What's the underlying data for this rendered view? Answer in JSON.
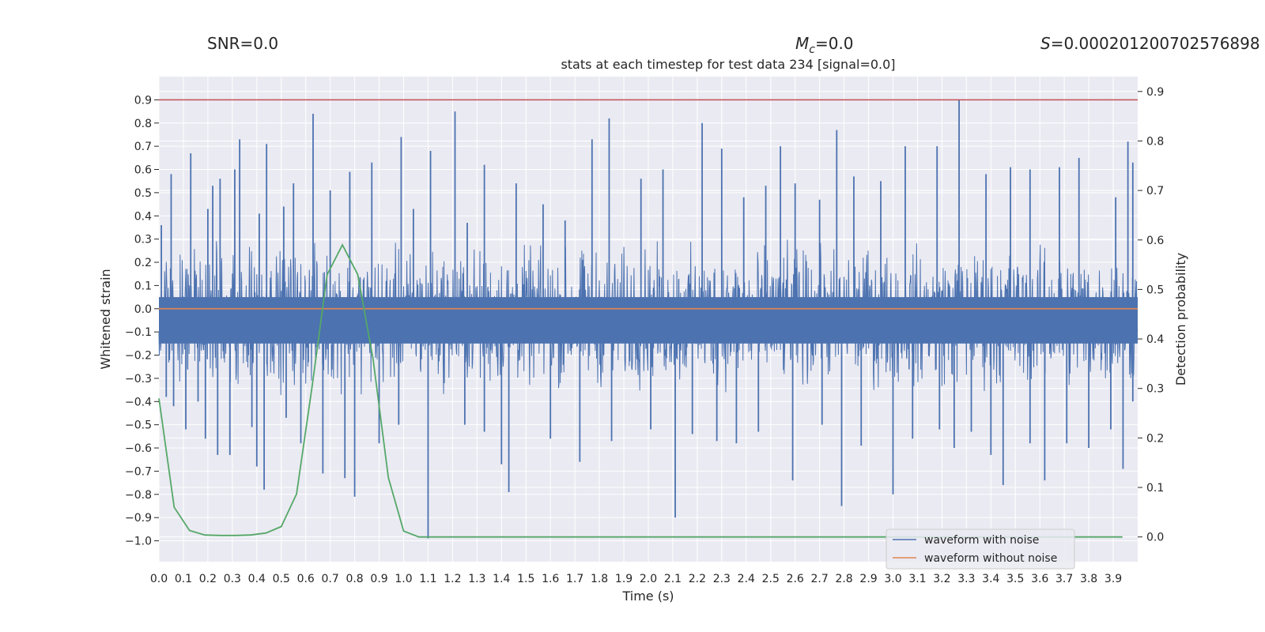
{
  "header": {
    "snr": "SNR=0.0",
    "mc_symbol": "M",
    "mc_sub": "c",
    "mc_value": "=0.0",
    "s_symbol": "S",
    "s_value": "=0.000201200702576898"
  },
  "chart_data": {
    "type": "line",
    "title": "stats at each timestep for test data 234 [signal=0.0]",
    "xlabel": "Time (s)",
    "ylabel": "Whitened strain",
    "y2label": "Detection probability",
    "xlim": [
      0.0,
      4.0
    ],
    "ylim": [
      -1.09,
      1.0
    ],
    "y2lim": [
      -0.05,
      0.93
    ],
    "grid": true,
    "legend_position": "lower-right",
    "xticks": [
      "0.0",
      "0.1",
      "0.2",
      "0.3",
      "0.4",
      "0.5",
      "0.6",
      "0.7",
      "0.8",
      "0.9",
      "1.0",
      "1.1",
      "1.2",
      "1.3",
      "1.4",
      "1.5",
      "1.6",
      "1.7",
      "1.8",
      "1.9",
      "2.0",
      "2.1",
      "2.2",
      "2.3",
      "2.4",
      "2.5",
      "2.6",
      "2.7",
      "2.8",
      "2.9",
      "3.0",
      "3.1",
      "3.2",
      "3.3",
      "3.4",
      "3.5",
      "3.6",
      "3.7",
      "3.8",
      "3.9"
    ],
    "yticks": [
      "0.9",
      "0.8",
      "0.7",
      "0.6",
      "0.5",
      "0.4",
      "0.3",
      "0.2",
      "0.1",
      "0.0",
      "−0.1",
      "−0.2",
      "−0.3",
      "−0.4",
      "−0.5",
      "−0.6",
      "−0.7",
      "−0.8",
      "−0.9",
      "−1.0"
    ],
    "y2ticks": [
      "0.9",
      "0.8",
      "0.7",
      "0.6",
      "0.5",
      "0.4",
      "0.3",
      "0.2",
      "0.1",
      "0.0"
    ],
    "threshold_line": {
      "y": 0.9,
      "color": "#c44e52"
    },
    "series": [
      {
        "name": "waveform with noise",
        "color": "#4c72b0",
        "axis": "left",
        "kind": "noise",
        "band": [
          -0.15,
          0.05
        ],
        "spikes": [
          [
            0.01,
            0.36
          ],
          [
            0.05,
            0.58
          ],
          [
            0.13,
            0.67
          ],
          [
            0.2,
            0.43
          ],
          [
            0.22,
            0.53
          ],
          [
            0.25,
            0.56
          ],
          [
            0.31,
            0.6
          ],
          [
            0.33,
            0.73
          ],
          [
            0.41,
            0.41
          ],
          [
            0.44,
            0.71
          ],
          [
            0.51,
            0.44
          ],
          [
            0.55,
            0.54
          ],
          [
            0.63,
            0.84
          ],
          [
            0.7,
            0.51
          ],
          [
            0.78,
            0.59
          ],
          [
            0.87,
            0.63
          ],
          [
            0.99,
            0.74
          ],
          [
            1.04,
            0.43
          ],
          [
            1.11,
            0.68
          ],
          [
            1.21,
            0.85
          ],
          [
            1.26,
            0.37
          ],
          [
            1.33,
            0.62
          ],
          [
            1.46,
            0.54
          ],
          [
            1.57,
            0.45
          ],
          [
            1.66,
            0.38
          ],
          [
            1.77,
            0.73
          ],
          [
            1.84,
            0.82
          ],
          [
            1.97,
            0.56
          ],
          [
            2.06,
            0.6
          ],
          [
            2.22,
            0.8
          ],
          [
            2.3,
            0.69
          ],
          [
            2.39,
            0.48
          ],
          [
            2.48,
            0.53
          ],
          [
            2.54,
            0.7
          ],
          [
            2.6,
            0.54
          ],
          [
            2.7,
            0.47
          ],
          [
            2.77,
            0.77
          ],
          [
            2.84,
            0.57
          ],
          [
            2.95,
            0.55
          ],
          [
            3.05,
            0.7
          ],
          [
            3.18,
            0.7
          ],
          [
            3.27,
            0.9
          ],
          [
            3.38,
            0.58
          ],
          [
            3.48,
            0.61
          ],
          [
            3.56,
            0.6
          ],
          [
            3.68,
            0.61
          ],
          [
            3.76,
            0.65
          ],
          [
            3.91,
            0.48
          ],
          [
            3.96,
            0.72
          ],
          [
            3.98,
            0.63
          ],
          [
            0.03,
            -0.38
          ],
          [
            0.06,
            -0.42
          ],
          [
            0.11,
            -0.52
          ],
          [
            0.16,
            -0.4
          ],
          [
            0.19,
            -0.56
          ],
          [
            0.24,
            -0.63
          ],
          [
            0.29,
            -0.63
          ],
          [
            0.38,
            -0.51
          ],
          [
            0.4,
            -0.68
          ],
          [
            0.43,
            -0.78
          ],
          [
            0.52,
            -0.47
          ],
          [
            0.58,
            -0.58
          ],
          [
            0.67,
            -0.71
          ],
          [
            0.76,
            -0.73
          ],
          [
            0.8,
            -0.81
          ],
          [
            0.9,
            -0.58
          ],
          [
            0.98,
            -0.5
          ],
          [
            1.1,
            -0.99
          ],
          [
            1.25,
            -0.5
          ],
          [
            1.33,
            -0.53
          ],
          [
            1.4,
            -0.67
          ],
          [
            1.43,
            -0.79
          ],
          [
            1.6,
            -0.56
          ],
          [
            1.72,
            -0.66
          ],
          [
            1.85,
            -0.57
          ],
          [
            2.01,
            -0.52
          ],
          [
            2.11,
            -0.9
          ],
          [
            2.18,
            -0.54
          ],
          [
            2.28,
            -0.57
          ],
          [
            2.36,
            -0.58
          ],
          [
            2.45,
            -0.53
          ],
          [
            2.59,
            -0.74
          ],
          [
            2.71,
            -0.5
          ],
          [
            2.79,
            -0.85
          ],
          [
            2.87,
            -0.59
          ],
          [
            3.0,
            -0.8
          ],
          [
            3.08,
            -0.56
          ],
          [
            3.19,
            -0.52
          ],
          [
            3.25,
            -0.6
          ],
          [
            3.32,
            -0.53
          ],
          [
            3.4,
            -0.63
          ],
          [
            3.45,
            -0.76
          ],
          [
            3.56,
            -0.58
          ],
          [
            3.62,
            -0.74
          ],
          [
            3.71,
            -0.58
          ],
          [
            3.8,
            -0.6
          ],
          [
            3.89,
            -0.52
          ],
          [
            3.94,
            -0.69
          ],
          [
            3.98,
            -0.4
          ]
        ]
      },
      {
        "name": "waveform without noise",
        "color": "#dd8452",
        "axis": "left",
        "x": [
          0.0,
          4.0
        ],
        "y": [
          0.0,
          0.0
        ]
      },
      {
        "color": "#55a868",
        "axis": "right",
        "x": [
          0.0,
          0.0625,
          0.125,
          0.1875,
          0.25,
          0.3125,
          0.375,
          0.4375,
          0.5,
          0.5625,
          0.625,
          0.6875,
          0.75,
          0.8125,
          0.875,
          0.9375,
          1.0,
          1.0625,
          1.125,
          1.1875,
          1.25,
          1.5,
          2.0,
          2.5,
          3.0,
          3.5,
          3.9375
        ],
        "y": [
          0.28,
          0.06,
          0.013,
          0.004,
          0.003,
          0.003,
          0.004,
          0.008,
          0.021,
          0.087,
          0.3,
          0.53,
          0.59,
          0.53,
          0.36,
          0.12,
          0.012,
          0.0,
          0.0,
          0.0,
          0.0,
          0.0,
          0.0,
          0.0,
          0.0,
          0.0,
          0.0
        ]
      }
    ]
  }
}
